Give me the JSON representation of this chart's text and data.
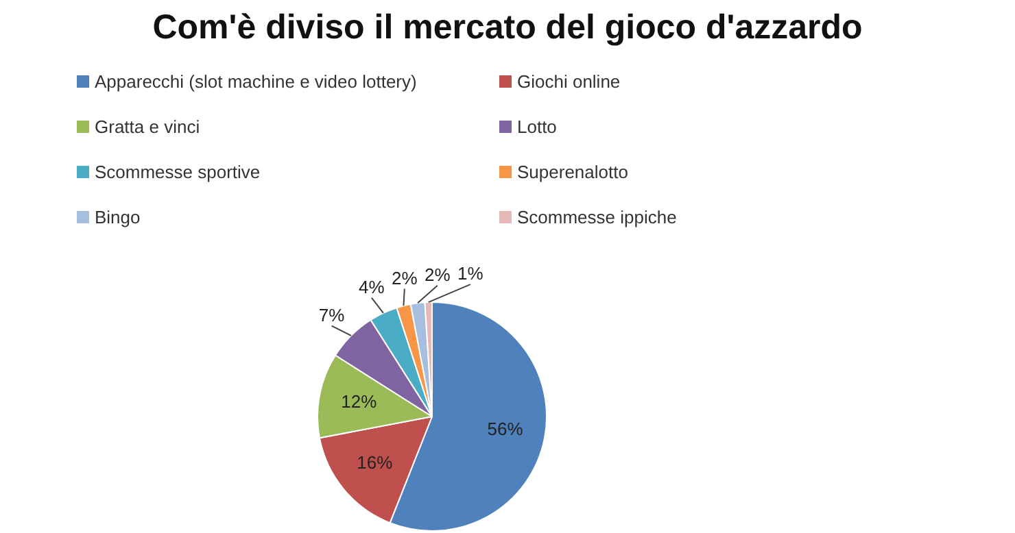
{
  "chart_data": {
    "type": "pie",
    "title": "Com'è diviso il mercato del gioco d'azzardo",
    "categories": [
      "Apparecchi (slot machine e video lottery)",
      "Giochi online",
      "Gratta e vinci",
      "Lotto",
      "Scommesse sportive",
      "Superenalotto",
      "Bingo",
      "Scommesse ippiche"
    ],
    "values": [
      56,
      16,
      12,
      7,
      4,
      2,
      2,
      1
    ],
    "colors": [
      "#4f81bd",
      "#c0504d",
      "#9bbb59",
      "#8064a2",
      "#4bacc6",
      "#f79646",
      "#a7bfde",
      "#e6b9b8"
    ],
    "value_labels": [
      "56%",
      "16%",
      "12%",
      "7%",
      "4%",
      "2%",
      "2%",
      "1%"
    ],
    "legend": "top"
  }
}
